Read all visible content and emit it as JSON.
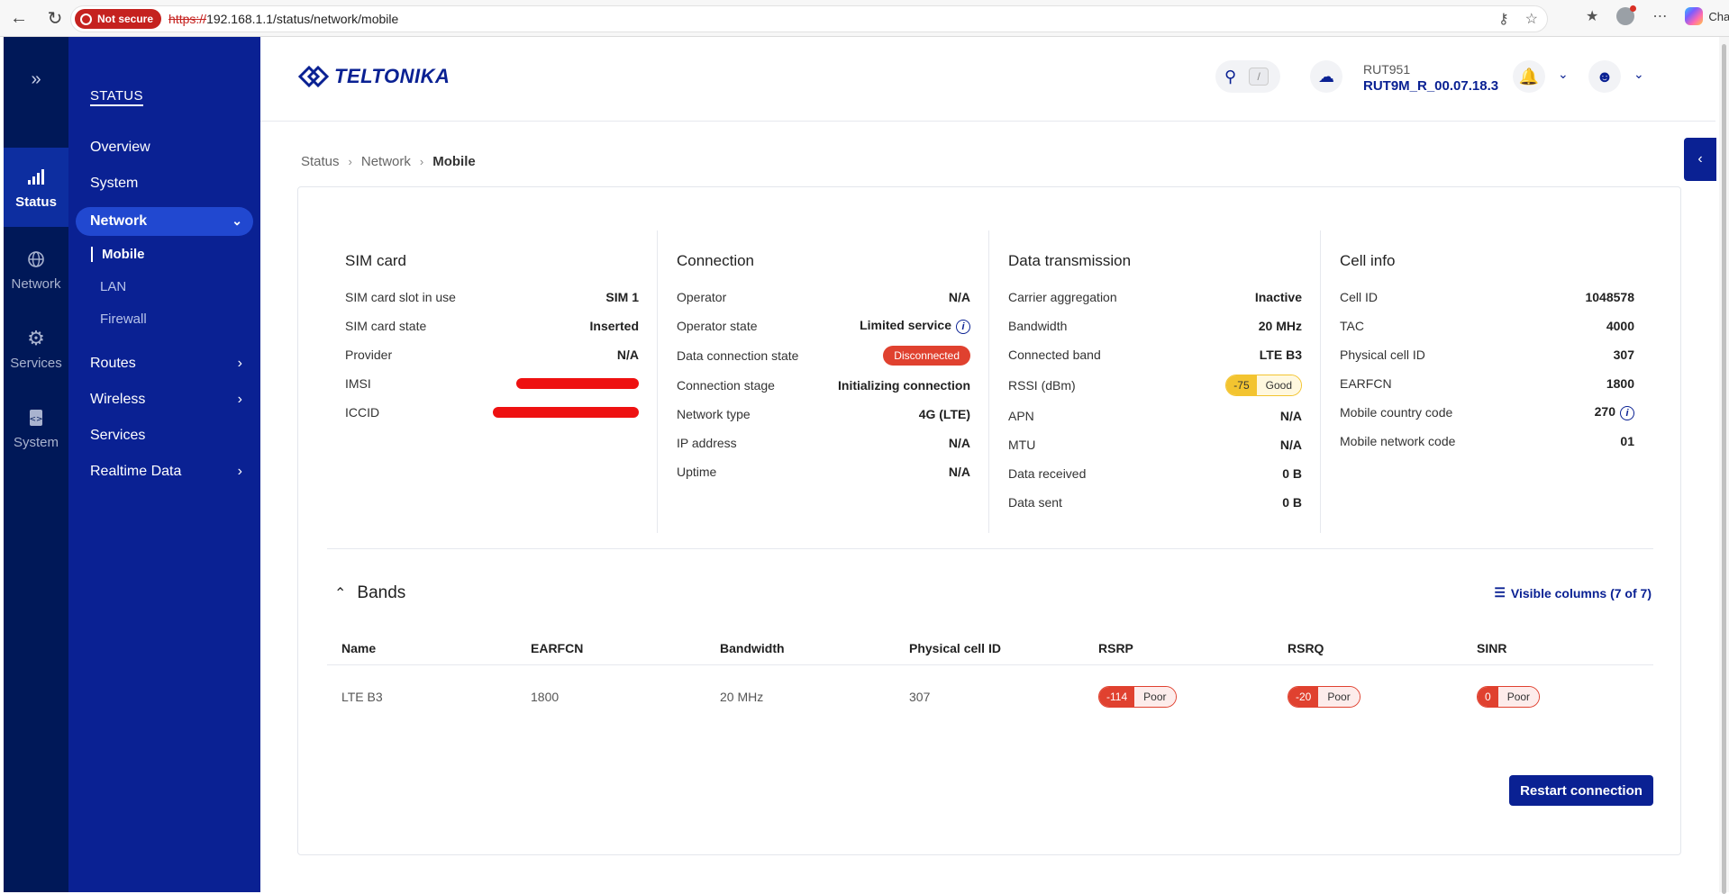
{
  "browser": {
    "not_secure": "Not secure",
    "url_scheme": "https://",
    "url_rest": "192.168.1.1/status/network/mobile",
    "chat": "Chat"
  },
  "rail": {
    "items": [
      {
        "label": "Status",
        "icon": "signal-icon"
      },
      {
        "label": "Network",
        "icon": "globe-icon"
      },
      {
        "label": "Services",
        "icon": "gear-icon"
      },
      {
        "label": "System",
        "icon": "system-icon"
      }
    ]
  },
  "sidebar": {
    "heading": "STATUS",
    "overview": "Overview",
    "system": "System",
    "network": "Network",
    "mobile": "Mobile",
    "lan": "LAN",
    "firewall": "Firewall",
    "routes": "Routes",
    "wireless": "Wireless",
    "services": "Services",
    "realtime": "Realtime Data"
  },
  "header": {
    "logo": "TELTONIKA",
    "search_key": "/",
    "device_model": "RUT951",
    "firmware": "RUT9M_R_00.07.18.3"
  },
  "breadcrumb": [
    "Status",
    "Network",
    "Mobile"
  ],
  "sim": {
    "title": "SIM card",
    "rows": [
      {
        "k": "SIM card slot in use",
        "v": "SIM 1"
      },
      {
        "k": "SIM card state",
        "v": "Inserted"
      },
      {
        "k": "Provider",
        "v": "N/A"
      },
      {
        "k": "IMSI",
        "v": ""
      },
      {
        "k": "ICCID",
        "v": ""
      }
    ]
  },
  "connection": {
    "title": "Connection",
    "operator_k": "Operator",
    "operator_v": "N/A",
    "opstate_k": "Operator state",
    "opstate_v": "Limited service",
    "dcs_k": "Data connection state",
    "dcs_v": "Disconnected",
    "stage_k": "Connection stage",
    "stage_v": "Initializing connection",
    "type_k": "Network type",
    "type_v": "4G (LTE)",
    "ip_k": "IP address",
    "ip_v": "N/A",
    "up_k": "Uptime",
    "up_v": "N/A"
  },
  "data_tx": {
    "title": "Data transmission",
    "ca_k": "Carrier aggregation",
    "ca_v": "Inactive",
    "bw_k": "Bandwidth",
    "bw_v": "20 MHz",
    "band_k": "Connected band",
    "band_v": "LTE B3",
    "rssi_k": "RSSI (dBm)",
    "rssi_val": "-75",
    "rssi_q": "Good",
    "apn_k": "APN",
    "apn_v": "N/A",
    "mtu_k": "MTU",
    "mtu_v": "N/A",
    "rx_k": "Data received",
    "rx_v": "0 B",
    "tx_k": "Data sent",
    "tx_v": "0 B"
  },
  "cell": {
    "title": "Cell info",
    "id_k": "Cell ID",
    "id_v": "1048578",
    "tac_k": "TAC",
    "tac_v": "4000",
    "pci_k": "Physical cell ID",
    "pci_v": "307",
    "earfcn_k": "EARFCN",
    "earfcn_v": "1800",
    "mcc_k": "Mobile country code",
    "mcc_v": "270",
    "mnc_k": "Mobile network code",
    "mnc_v": "01"
  },
  "bands": {
    "title": "Bands",
    "visible_columns": "Visible columns (7 of 7)",
    "headers": [
      "Name",
      "EARFCN",
      "Bandwidth",
      "Physical cell ID",
      "RSRP",
      "RSRQ",
      "SINR"
    ],
    "row": {
      "name": "LTE B3",
      "earfcn": "1800",
      "bandwidth": "20 MHz",
      "pci": "307",
      "rsrp": "-114",
      "rsrp_q": "Poor",
      "rsrq": "-20",
      "rsrq_q": "Poor",
      "sinr": "0",
      "sinr_q": "Poor"
    }
  },
  "actions": {
    "restart": "Restart connection"
  },
  "colors": {
    "primary": "#0a2193",
    "rail": "#001858",
    "danger": "#e0412f",
    "warning": "#f3c430"
  }
}
